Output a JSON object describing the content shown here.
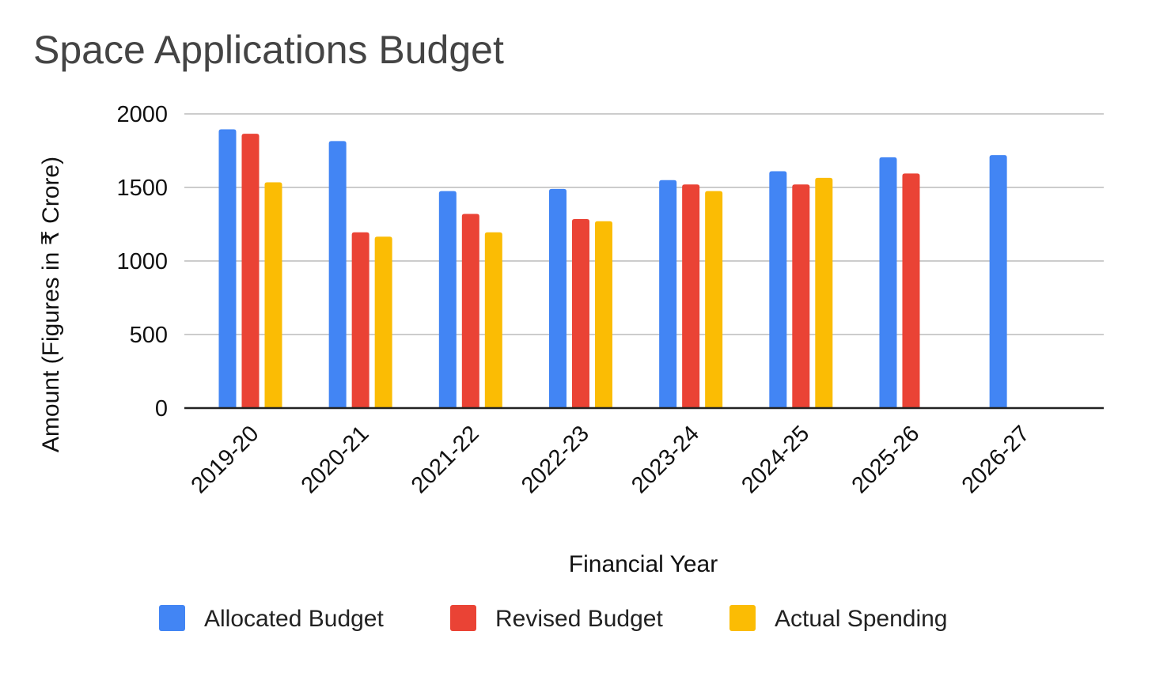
{
  "chart_data": {
    "type": "bar",
    "title": "Space Applications Budget",
    "xlabel": "Financial Year",
    "ylabel": "Amount (Figures in ₹ Crore)",
    "ylim": [
      0,
      2000
    ],
    "yticks": [
      "0",
      "500",
      "1000",
      "1500",
      "2000"
    ],
    "grid": true,
    "legend_position": "bottom",
    "categories": [
      "2019-20",
      "2020-21",
      "2021-22",
      "2022-23",
      "2023-24",
      "2024-25",
      "2025-26",
      "2026-27"
    ],
    "series": [
      {
        "name": "Allocated Budget",
        "color": "#4285f4",
        "values": [
          1895,
          1815,
          1475,
          1490,
          1550,
          1610,
          1705,
          1720
        ]
      },
      {
        "name": "Revised Budget",
        "color": "#ea4335",
        "values": [
          1865,
          1195,
          1320,
          1285,
          1520,
          1520,
          1595,
          null
        ]
      },
      {
        "name": "Actual Spending",
        "color": "#fbbc04",
        "values": [
          1535,
          1165,
          1195,
          1270,
          1475,
          1565,
          null,
          null
        ]
      }
    ]
  }
}
